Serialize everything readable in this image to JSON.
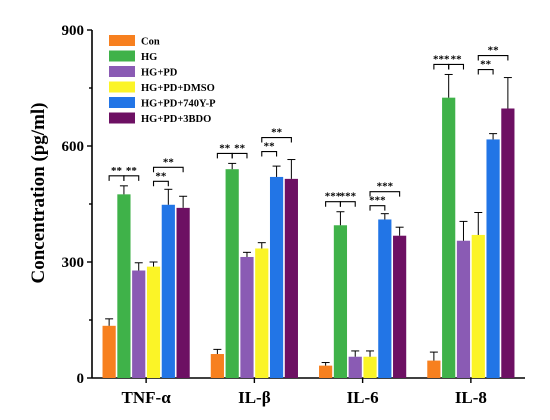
{
  "chart_data": {
    "type": "bar",
    "ylabel": "Concentration (pg/ml)",
    "xlabel": "",
    "ylim": [
      0,
      900
    ],
    "yticks": [
      0,
      300,
      600,
      900
    ],
    "grid": false,
    "legend_position": "top-left",
    "categories": [
      "TNF-α",
      "IL-β",
      "IL-6",
      "IL-8"
    ],
    "series": [
      {
        "name": "Con",
        "color": "#f7801f",
        "values": [
          135,
          62,
          32,
          45
        ],
        "errors": [
          18,
          12,
          8,
          22
        ]
      },
      {
        "name": "HG",
        "color": "#3fb249",
        "values": [
          475,
          540,
          395,
          725
        ],
        "errors": [
          22,
          15,
          35,
          60
        ]
      },
      {
        "name": "HG+PD",
        "color": "#8a5bb4",
        "values": [
          278,
          313,
          55,
          355
        ],
        "errors": [
          20,
          12,
          15,
          50
        ]
      },
      {
        "name": "HG+PD+DMSO",
        "color": "#fbf427",
        "values": [
          288,
          335,
          55,
          370
        ],
        "errors": [
          12,
          15,
          15,
          58
        ]
      },
      {
        "name": "HG+PD+740Y-P",
        "color": "#2275e6",
        "values": [
          448,
          520,
          410,
          617
        ],
        "errors": [
          40,
          28,
          15,
          15
        ]
      },
      {
        "name": "HG+PD+3BDO",
        "color": "#6d1063",
        "values": [
          440,
          515,
          368,
          697
        ],
        "errors": [
          30,
          50,
          22,
          80
        ]
      }
    ],
    "significance": [
      {
        "category": "TNF-α",
        "from": "Con",
        "to": "HG",
        "label": "**"
      },
      {
        "category": "TNF-α",
        "from": "HG",
        "to": "HG+PD",
        "label": "**"
      },
      {
        "category": "TNF-α",
        "from": "HG+PD+DMSO",
        "to": "HG+PD+740Y-P",
        "label": "**"
      },
      {
        "category": "TNF-α",
        "from": "HG+PD+DMSO",
        "to": "HG+PD+3BDO",
        "label": "**"
      },
      {
        "category": "IL-β",
        "from": "Con",
        "to": "HG",
        "label": "**"
      },
      {
        "category": "IL-β",
        "from": "HG",
        "to": "HG+PD",
        "label": "**"
      },
      {
        "category": "IL-β",
        "from": "HG+PD+DMSO",
        "to": "HG+PD+740Y-P",
        "label": "**"
      },
      {
        "category": "IL-β",
        "from": "HG+PD+DMSO",
        "to": "HG+PD+3BDO",
        "label": "**"
      },
      {
        "category": "IL-6",
        "from": "Con",
        "to": "HG",
        "label": "***"
      },
      {
        "category": "IL-6",
        "from": "HG",
        "to": "HG+PD",
        "label": "***"
      },
      {
        "category": "IL-6",
        "from": "HG+PD+DMSO",
        "to": "HG+PD+740Y-P",
        "label": "***"
      },
      {
        "category": "IL-6",
        "from": "HG+PD+DMSO",
        "to": "HG+PD+3BDO",
        "label": "***"
      },
      {
        "category": "IL-8",
        "from": "Con",
        "to": "HG",
        "label": "***"
      },
      {
        "category": "IL-8",
        "from": "HG",
        "to": "HG+PD",
        "label": "**"
      },
      {
        "category": "IL-8",
        "from": "HG+PD+DMSO",
        "to": "HG+PD+740Y-P",
        "label": "**"
      },
      {
        "category": "IL-8",
        "from": "HG+PD+DMSO",
        "to": "HG+PD+3BDO",
        "label": "**"
      }
    ]
  }
}
